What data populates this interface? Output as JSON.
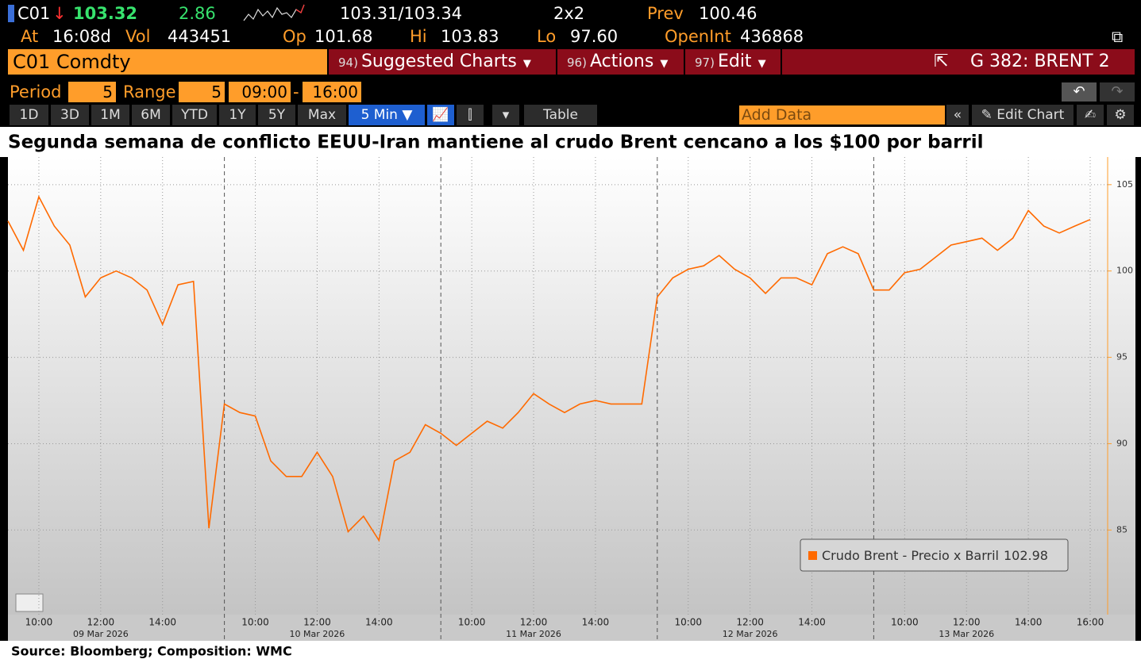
{
  "header": {
    "ticker": "C01",
    "last": "103.32",
    "change": "2.86",
    "bid_ask": "103.31/103.34",
    "size": "2x2",
    "prev_label": "Prev",
    "prev": "100.46",
    "at_label": "At",
    "time": "16:08d",
    "vol_label": "Vol",
    "vol": "443451",
    "op_label": "Op",
    "op": "101.68",
    "hi_label": "Hi",
    "hi": "103.83",
    "lo_label": "Lo",
    "lo": "97.60",
    "oi_label": "OpenInt",
    "oi": "436868"
  },
  "toolbar": {
    "security": "C01 Comdty",
    "menus": [
      {
        "num": "94)",
        "label": "Suggested Charts"
      },
      {
        "num": "96)",
        "label": "Actions"
      },
      {
        "num": "97)",
        "label": "Edit"
      }
    ],
    "chart_id": "G 382: BRENT 2"
  },
  "period": {
    "period_label": "Period",
    "period": "5",
    "range_label": "Range",
    "range": "5",
    "from": "09:00",
    "separator": "-",
    "to": "16:00"
  },
  "tabs": [
    "1D",
    "3D",
    "1M",
    "6M",
    "YTD",
    "1Y",
    "5Y",
    "Max"
  ],
  "interval": "5 Min",
  "table": "Table",
  "add_data": "Add Data",
  "edit_chart": "Edit Chart",
  "chart_data": {
    "type": "line",
    "title": "Segunda semana de conflicto EEUU-Iran mantiene al crudo Brent cencano a los $100 por barril",
    "categories": [
      null,
      null,
      "10:00",
      null,
      null,
      null,
      "12:00",
      null,
      null,
      null,
      "14:00",
      null,
      null,
      null,
      null,
      null,
      null,
      "10:00",
      null,
      null,
      null,
      "12:00",
      null,
      null,
      null,
      "14:00",
      null,
      null,
      null,
      null,
      null,
      null,
      "10:00",
      null,
      null,
      null,
      "12:00",
      null,
      null,
      null,
      "14:00",
      null,
      null,
      null,
      null,
      null,
      null,
      "10:00",
      null,
      null,
      null,
      "12:00",
      null,
      null,
      null,
      "14:00",
      null,
      null,
      null,
      null,
      null,
      null,
      "10:00",
      null,
      null,
      null,
      "12:00",
      null,
      null,
      null,
      "14:00",
      null,
      null,
      null,
      "16:00"
    ],
    "dates": [
      "09 Mar 2026",
      "10 Mar 2026",
      "11 Mar 2026",
      "12 Mar 2026",
      "13 Mar 2026"
    ],
    "series": [
      {
        "name": "Crudo Brent - Precio x Barril",
        "color": "#ff6a00",
        "values": [
          102.9,
          101.2,
          104.3,
          102.6,
          101.5,
          98.5,
          99.6,
          100.0,
          99.6,
          98.9,
          96.9,
          99.2,
          99.4,
          85.1,
          92.3,
          92.3,
          91.8,
          91.6,
          89.0,
          88.1,
          88.1,
          89.5,
          88.1,
          84.9,
          85.8,
          84.4,
          89.0,
          89.5,
          91.1,
          90.6,
          90.6,
          89.9,
          90.6,
          91.3,
          90.9,
          91.8,
          92.9,
          92.3,
          91.8,
          92.3,
          92.5,
          92.3,
          92.3,
          92.3,
          98.5,
          98.5,
          99.6,
          100.1,
          100.3,
          100.9,
          100.1,
          99.6,
          98.7,
          99.6,
          99.6,
          99.2,
          101.0,
          101.4,
          101.0,
          98.9,
          98.9,
          98.9,
          99.9,
          100.1,
          100.8,
          101.5,
          101.7,
          101.9,
          101.2,
          101.9,
          103.5,
          102.6,
          102.2,
          102.6,
          102.98
        ]
      }
    ],
    "ylim": [
      80.1,
      106.6
    ],
    "yticks": [
      85,
      90,
      95,
      100,
      105
    ],
    "grid": true
  },
  "footer": "Source: Bloomberg; Composition: WMC"
}
